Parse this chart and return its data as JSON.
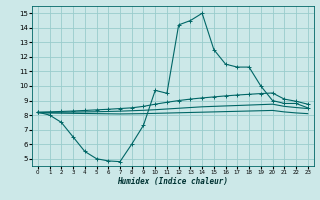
{
  "xlabel": "Humidex (Indice chaleur)",
  "bg_color": "#cce8e8",
  "line_color": "#006666",
  "grid_color": "#99cccc",
  "xlim": [
    -0.5,
    23.5
  ],
  "ylim": [
    4.5,
    15.5
  ],
  "xticks": [
    0,
    1,
    2,
    3,
    4,
    5,
    6,
    7,
    8,
    9,
    10,
    11,
    12,
    13,
    14,
    15,
    16,
    17,
    18,
    19,
    20,
    21,
    22,
    23
  ],
  "yticks": [
    5,
    6,
    7,
    8,
    9,
    10,
    11,
    12,
    13,
    14,
    15
  ],
  "line1_x": [
    0,
    1,
    2,
    3,
    4,
    5,
    6,
    7,
    8,
    9,
    10,
    11,
    12,
    13,
    14,
    15,
    16,
    17,
    18,
    19,
    20,
    21,
    22,
    23
  ],
  "line1_y": [
    8.2,
    8.0,
    7.5,
    6.5,
    5.5,
    5.0,
    4.85,
    4.8,
    6.0,
    7.3,
    9.7,
    9.5,
    14.2,
    14.5,
    15.0,
    12.5,
    11.5,
    11.3,
    11.3,
    10.0,
    9.0,
    8.8,
    8.8,
    8.5
  ],
  "line2_x": [
    0,
    1,
    2,
    3,
    4,
    5,
    6,
    7,
    8,
    9,
    10,
    11,
    12,
    13,
    14,
    15,
    16,
    17,
    18,
    19,
    20,
    21,
    22,
    23
  ],
  "line2_y": [
    8.2,
    8.22,
    8.25,
    8.28,
    8.32,
    8.36,
    8.4,
    8.45,
    8.5,
    8.6,
    8.75,
    8.88,
    9.0,
    9.1,
    9.18,
    9.25,
    9.32,
    9.38,
    9.43,
    9.48,
    9.52,
    9.1,
    8.95,
    8.75
  ],
  "line3_x": [
    0,
    1,
    2,
    3,
    4,
    5,
    6,
    7,
    8,
    9,
    10,
    11,
    12,
    13,
    14,
    15,
    16,
    17,
    18,
    19,
    20,
    21,
    22,
    23
  ],
  "line3_y": [
    8.18,
    8.19,
    8.2,
    8.21,
    8.22,
    8.23,
    8.25,
    8.27,
    8.3,
    8.33,
    8.37,
    8.42,
    8.47,
    8.52,
    8.57,
    8.6,
    8.63,
    8.66,
    8.69,
    8.72,
    8.75,
    8.6,
    8.52,
    8.45
  ],
  "line4_x": [
    0,
    1,
    2,
    3,
    4,
    5,
    6,
    7,
    8,
    9,
    10,
    11,
    12,
    13,
    14,
    15,
    16,
    17,
    18,
    19,
    20,
    21,
    22,
    23
  ],
  "line4_y": [
    8.15,
    8.14,
    8.13,
    8.12,
    8.11,
    8.1,
    8.09,
    8.08,
    8.09,
    8.1,
    8.12,
    8.14,
    8.16,
    8.18,
    8.2,
    8.22,
    8.24,
    8.26,
    8.28,
    8.3,
    8.32,
    8.22,
    8.15,
    8.1
  ]
}
